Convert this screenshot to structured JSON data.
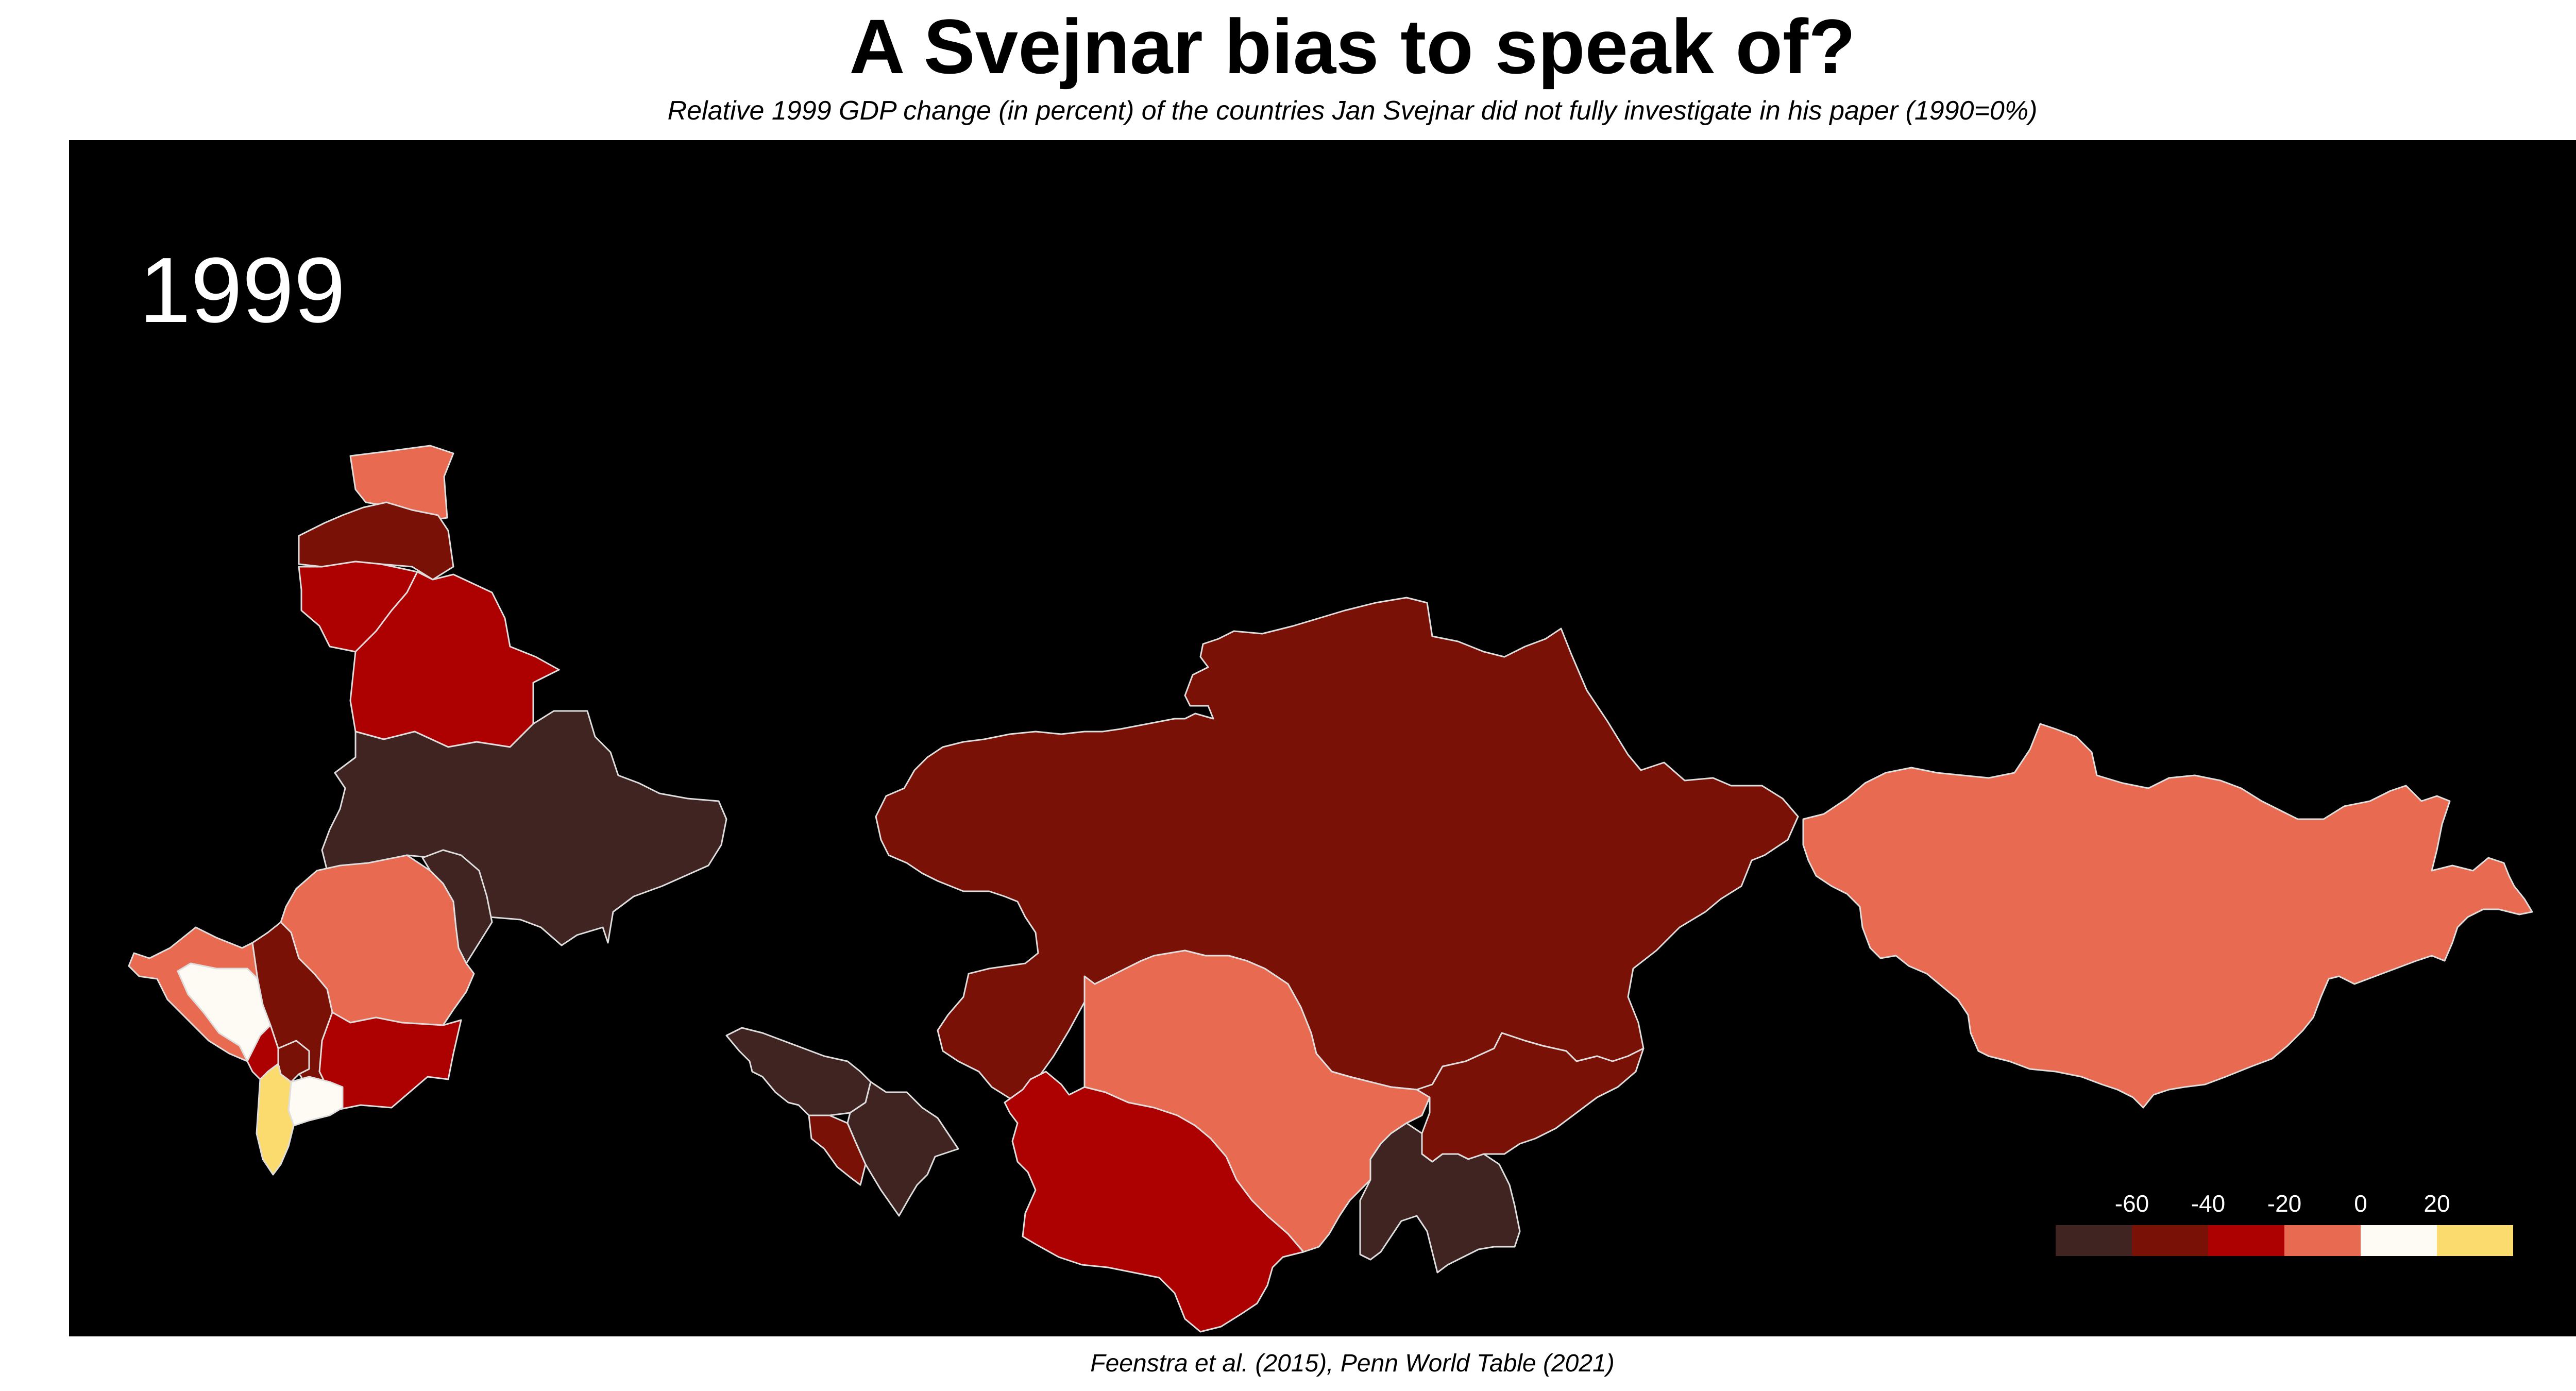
{
  "title": "A Svejnar bias to speak of?",
  "subtitle": "Relative 1999 GDP change (in percent) of the countries Jan Svejnar did not fully investigate in his paper (1990=0%)",
  "caption": "Feenstra et al. (2015), Penn World Table (2021)",
  "year_label": "1999",
  "colors": {
    "background": "#000000",
    "bin_lt_neg60": "#3f2421",
    "bin_neg60_neg40": "#7a1107",
    "bin_neg40_neg20": "#ad0000",
    "bin_neg20_0": "#e86a50",
    "bin_0_20": "#fdfbf3",
    "bin_gt_20": "#fbdb6e",
    "border": "#dedede"
  },
  "legend": {
    "tick_labels": [
      "-60",
      "-40",
      "-20",
      "0",
      "20"
    ],
    "bins": [
      "bin_lt_neg60",
      "bin_neg60_neg40",
      "bin_neg40_neg20",
      "bin_neg20_0",
      "bin_0_20",
      "bin_gt_20"
    ]
  }
}
